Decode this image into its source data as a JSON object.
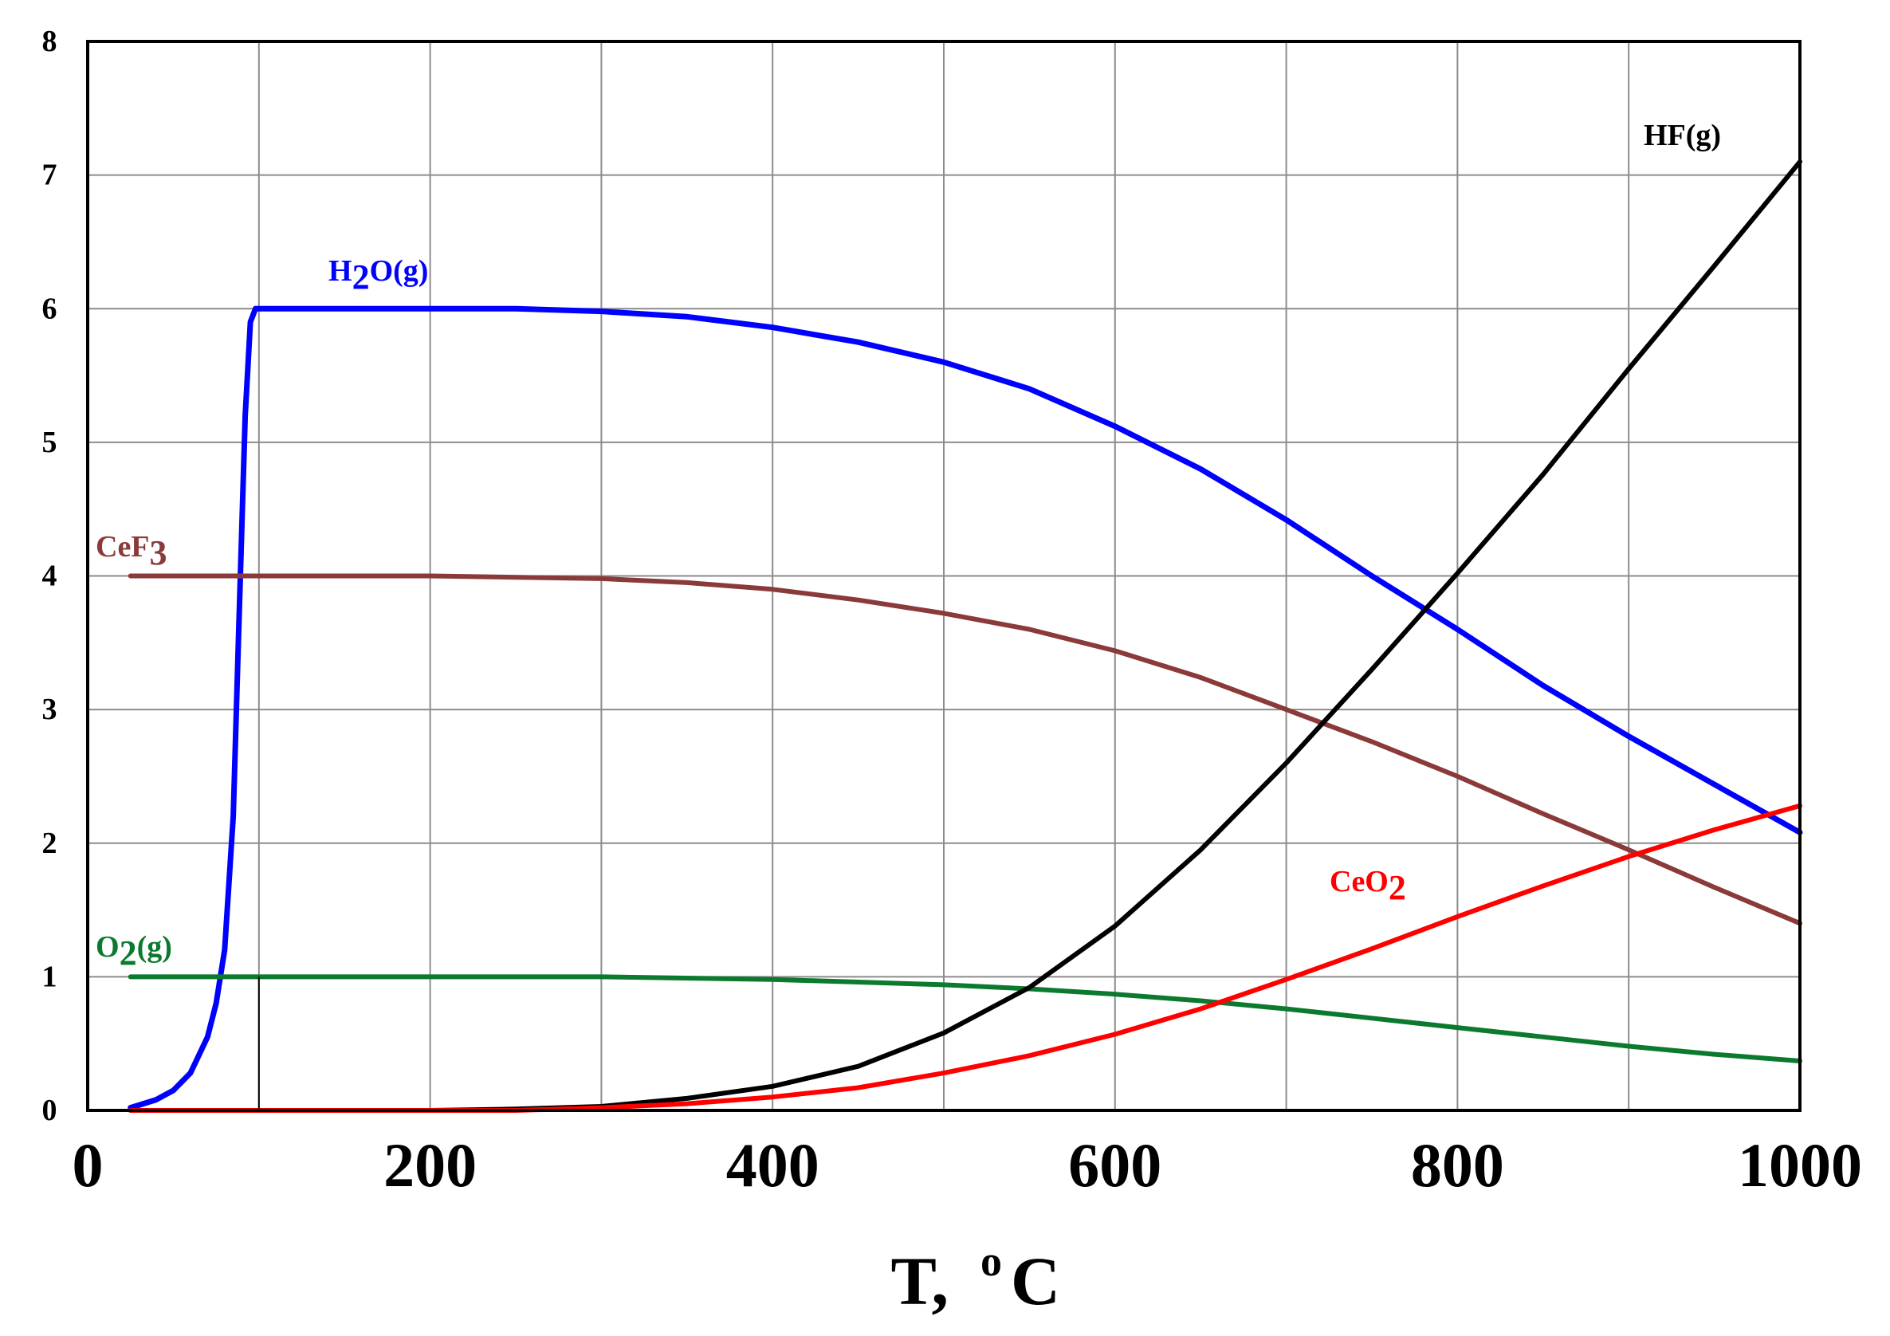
{
  "chart_data": {
    "type": "line",
    "title": "",
    "xlabel": "T,",
    "xlabel_unit": "oC",
    "ylabel": "",
    "xlim": [
      0,
      1000
    ],
    "ylim": [
      0,
      8
    ],
    "x_ticks": [
      "0",
      "200",
      "400",
      "600",
      "800",
      "1000"
    ],
    "y_ticks": [
      "0",
      "1",
      "2",
      "3",
      "4",
      "5",
      "6",
      "7",
      "8"
    ],
    "grid": true,
    "series": [
      {
        "name": "H2O(g)",
        "label_parts": [
          "H",
          "2",
          "O(g)"
        ],
        "color": "#0000ff",
        "x": [
          25,
          40,
          50,
          60,
          70,
          75,
          80,
          85,
          88,
          92,
          95,
          98,
          100,
          150,
          200,
          250,
          300,
          350,
          400,
          450,
          500,
          550,
          600,
          650,
          700,
          750,
          800,
          850,
          900,
          950,
          1000
        ],
        "y": [
          0.02,
          0.08,
          0.15,
          0.28,
          0.55,
          0.8,
          1.2,
          2.2,
          3.5,
          5.2,
          5.9,
          6.0,
          6.0,
          6.0,
          6.0,
          6.0,
          5.98,
          5.94,
          5.86,
          5.75,
          5.6,
          5.4,
          5.12,
          4.8,
          4.42,
          4.0,
          3.6,
          3.18,
          2.8,
          2.44,
          2.08
        ]
      },
      {
        "name": "CeF3",
        "label_parts": [
          "CeF",
          "3",
          ""
        ],
        "color": "#8b3a3a",
        "x": [
          25,
          100,
          200,
          300,
          350,
          400,
          450,
          500,
          550,
          600,
          650,
          700,
          750,
          800,
          850,
          900,
          950,
          1000
        ],
        "y": [
          4.0,
          4.0,
          4.0,
          3.98,
          3.95,
          3.9,
          3.82,
          3.72,
          3.6,
          3.44,
          3.24,
          3.0,
          2.76,
          2.5,
          2.22,
          1.95,
          1.67,
          1.4
        ]
      },
      {
        "name": "O2(g)",
        "label_parts": [
          "O",
          "2",
          "(g)"
        ],
        "color": "#0b7a2e",
        "x": [
          25,
          100,
          200,
          300,
          400,
          500,
          550,
          600,
          650,
          700,
          750,
          800,
          850,
          900,
          950,
          1000
        ],
        "y": [
          1.0,
          1.0,
          1.0,
          1.0,
          0.98,
          0.94,
          0.91,
          0.87,
          0.82,
          0.76,
          0.69,
          0.62,
          0.55,
          0.48,
          0.42,
          0.37
        ]
      },
      {
        "name": "HF(g)",
        "label_parts": [
          "HF(g)",
          "",
          ""
        ],
        "color": "#000000",
        "x": [
          25,
          200,
          250,
          300,
          350,
          400,
          450,
          500,
          550,
          600,
          650,
          700,
          750,
          800,
          850,
          900,
          950,
          1000
        ],
        "y": [
          0.0,
          0.0,
          0.01,
          0.03,
          0.09,
          0.18,
          0.33,
          0.58,
          0.92,
          1.38,
          1.95,
          2.6,
          3.3,
          4.02,
          4.76,
          5.55,
          6.32,
          7.1
        ]
      },
      {
        "name": "CeO2",
        "label_parts": [
          "CeO",
          "2",
          ""
        ],
        "color": "#ff0000",
        "x": [
          25,
          200,
          250,
          300,
          350,
          400,
          450,
          500,
          550,
          600,
          650,
          700,
          750,
          800,
          850,
          900,
          950,
          1000
        ],
        "y": [
          0.0,
          0.0,
          0.0,
          0.02,
          0.05,
          0.1,
          0.17,
          0.28,
          0.41,
          0.57,
          0.76,
          0.98,
          1.21,
          1.45,
          1.68,
          1.9,
          2.1,
          2.28
        ]
      }
    ]
  }
}
